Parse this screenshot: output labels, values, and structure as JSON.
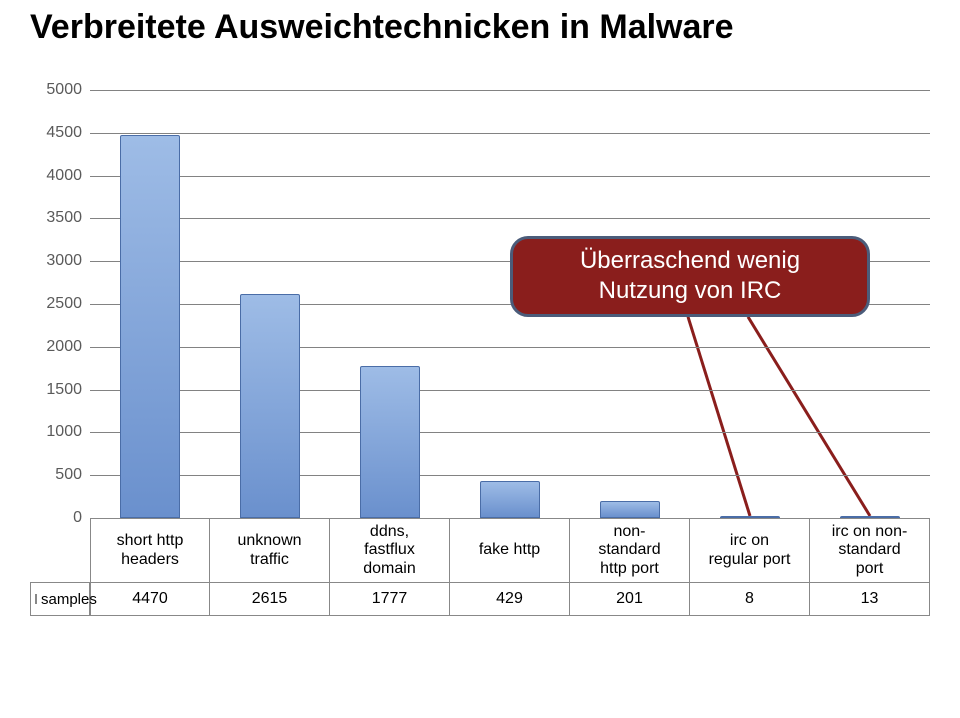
{
  "title": "Verbreitete Ausweichtechnicken in Malware",
  "chart": {
    "type": "bar",
    "series_label": "samples",
    "categories": [
      "short http\nheaders",
      "unknown\ntraffic",
      "ddns,\nfastflux\ndomain",
      "fake http",
      "non-\nstandard\nhttp port",
      "irc on\nregular port",
      "irc on non-\nstandard\nport"
    ],
    "values": [
      4470,
      2615,
      1777,
      429,
      201,
      8,
      13
    ],
    "ylim": [
      0,
      5000
    ],
    "ytick_step": 500,
    "bar_fill": "#7da3da",
    "bar_stroke": "#4a6da7",
    "bar_gradient_top": "#9ebce6",
    "bar_gradient_bottom": "#6a90cd",
    "grid_color": "#828282",
    "bar_width_ratio": 0.5,
    "label_fontsize": 16,
    "tick_fontsize": 16,
    "background_color": "#ffffff",
    "legend_swatch_color": "#7da3da"
  },
  "callout": {
    "text": "Überraschend wenig\nNutzung von IRC",
    "bg_color": "#8a1e1c",
    "border_color": "#4b5c7a",
    "text_color": "#ffffff",
    "fontsize": 24,
    "points_to_indices": [
      5,
      6
    ]
  }
}
